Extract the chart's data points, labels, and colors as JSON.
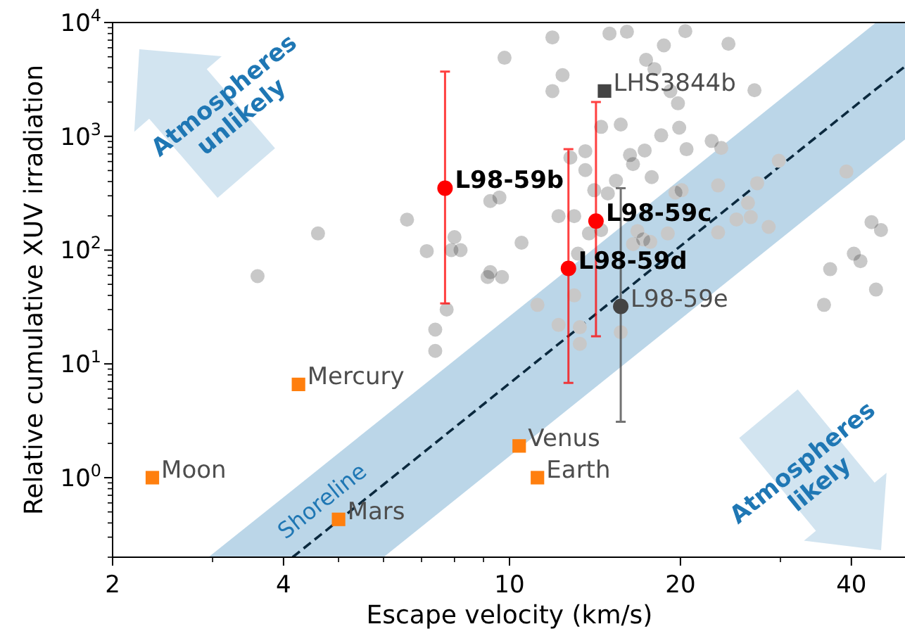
{
  "chart_data": {
    "type": "scatter",
    "xlabel": "Escape velocity (km/s)",
    "ylabel": "Relative cumulative XUV irradiation",
    "log": "xy",
    "xlim": [
      2,
      50
    ],
    "ylim": [
      0.2,
      10000
    ],
    "xticks": [
      2,
      {
        "value": 3,
        "label": null
      },
      4,
      {
        "value": 5,
        "label": null
      },
      {
        "value": 6,
        "label": null
      },
      {
        "value": 7,
        "label": null
      },
      {
        "value": 8,
        "label": null
      },
      {
        "value": 9,
        "label": null
      },
      10,
      20,
      {
        "value": 30,
        "label": null
      },
      40
    ],
    "yticks": [
      {
        "value": 0.2,
        "label": null
      },
      {
        "value": 0.3,
        "label": null
      },
      {
        "value": 0.4,
        "label": null
      },
      {
        "value": 0.5,
        "label": null
      },
      {
        "value": 0.6,
        "label": null
      },
      {
        "value": 0.7,
        "label": null
      },
      {
        "value": 0.8,
        "label": null
      },
      {
        "value": 0.9,
        "label": null
      },
      {
        "value": 1,
        "label": "10$^{0}$"
      },
      {
        "value": 2,
        "label": null
      },
      {
        "value": 3,
        "label": null
      },
      {
        "value": 4,
        "label": null
      },
      {
        "value": 5,
        "label": null
      },
      {
        "value": 6,
        "label": null
      },
      {
        "value": 7,
        "label": null
      },
      {
        "value": 8,
        "label": null
      },
      {
        "value": 9,
        "label": null
      },
      {
        "value": 10,
        "label": "10$^{1}$"
      },
      {
        "value": 20,
        "label": null
      },
      {
        "value": 30,
        "label": null
      },
      {
        "value": 40,
        "label": null
      },
      {
        "value": 50,
        "label": null
      },
      {
        "value": 60,
        "label": null
      },
      {
        "value": 70,
        "label": null
      },
      {
        "value": 80,
        "label": null
      },
      {
        "value": 90,
        "label": null
      },
      {
        "value": 100,
        "label": "10$^{2}$"
      },
      {
        "value": 200,
        "label": null
      },
      {
        "value": 300,
        "label": null
      },
      {
        "value": 400,
        "label": null
      },
      {
        "value": 500,
        "label": null
      },
      {
        "value": 600,
        "label": null
      },
      {
        "value": 700,
        "label": null
      },
      {
        "value": 800,
        "label": null
      },
      {
        "value": 900,
        "label": null
      },
      {
        "value": 1000,
        "label": "10$^{3}$"
      },
      {
        "value": 2000,
        "label": null
      },
      {
        "value": 3000,
        "label": null
      },
      {
        "value": 4000,
        "label": null
      },
      {
        "value": 5000,
        "label": null
      },
      {
        "value": 6000,
        "label": null
      },
      {
        "value": 7000,
        "label": null
      },
      {
        "value": 8000,
        "label": null
      },
      {
        "value": 9000,
        "label": null
      },
      {
        "value": 10000,
        "label": "10$^{4}$"
      }
    ],
    "annotations": [
      "Atmospheres\nunlikely",
      "Atmospheres\nlikely"
    ],
    "series": [
      {
        "type": "line",
        "name": "Shoreline",
        "color": "#1f77b4",
        "x": [
          2.95,
          4.15,
          6.0,
          44.2,
          50
        ],
        "values": [
          null,
          null,
          null,
          null,
          null
        ],
        "lower": [
          0.2,
          0.2,
          0.2,
          590,
          960
        ],
        "upper": [
          0.2,
          0.78,
          3.4,
          10000,
          10000
        ]
      },
      {
        "type": "line",
        "color": "#0b293e",
        "line_style": "dashed",
        "x": [
          4.15,
          6.0,
          44.2,
          50
        ],
        "values": [
          0.2,
          0.87,
          2600,
          4200
        ]
      },
      {
        "color": "#c8c8c8",
        "marker": "circle",
        "x": [
          9.8,
          6.6,
          4.6,
          3.6,
          7.15,
          8.0,
          7.9,
          8.2,
          9.25,
          9.6,
          9.15,
          9.25,
          9.7,
          7.75,
          7.4,
          7.4,
          11.9,
          15.0,
          16.1,
          20.4,
          18.7,
          24.3,
          12.4,
          11.9,
          17.4,
          18.0,
          19.8,
          27.0,
          14.5,
          15.7,
          19.9,
          18.5,
          22.7,
          23.6,
          20.5,
          16.3,
          17.3,
          16.5,
          13.6,
          12.8,
          13.6,
          15.4,
          17.8,
          14.1,
          14.9,
          19.6,
          20.1,
          23.3,
          29.8,
          26.3,
          27.3,
          39.2,
          12.2,
          13.0,
          13.8,
          14.5,
          16.8,
          17.2,
          16.5,
          17.7,
          19.0,
          23.3,
          25.1,
          26.6,
          28.6,
          10.5,
          13.2,
          43.4,
          45.1,
          40.4,
          41.5,
          36.7,
          44.2,
          35.8,
          11.2,
          13.0,
          12.2,
          13.3,
          13.3,
          15.7,
          19.2
        ],
        "values": [
          4900,
          185,
          140,
          59,
          98,
          130,
          100,
          100,
          270,
          290,
          58,
          64,
          58,
          30,
          20,
          13,
          7400,
          8000,
          8300,
          8400,
          6300,
          6500,
          3450,
          2500,
          4700,
          3900,
          1950,
          2540,
          1210,
          1270,
          1190,
          1020,
          910,
          790,
          770,
          685,
          750,
          570,
          740,
          650,
          505,
          407,
          438,
          336,
          315,
          320,
          336,
          370,
          610,
          260,
          387,
          490,
          199,
          199,
          140,
          150,
          147,
          124,
          113,
          118,
          140,
          143,
          186,
          195,
          160,
          116,
          93,
          176,
          150,
          93,
          80,
          68,
          45,
          33,
          33,
          40,
          22,
          21,
          15,
          19,
          2500
        ]
      },
      {
        "name": "Moon",
        "color": "#ff7f0e",
        "marker": "square",
        "x": [
          2.35
        ],
        "values": [
          1.0
        ]
      },
      {
        "name": "Mercury",
        "color": "#ff7f0e",
        "marker": "square",
        "x": [
          4.25
        ],
        "values": [
          6.6
        ]
      },
      {
        "name": "Mars",
        "color": "#ff7f0e",
        "marker": "square",
        "x": [
          5.0
        ],
        "values": [
          0.43
        ]
      },
      {
        "name": "Venus",
        "color": "#ff7f0e",
        "marker": "square",
        "x": [
          10.4
        ],
        "values": [
          1.9
        ]
      },
      {
        "name": "Earth",
        "color": "#ff7f0e",
        "marker": "square",
        "x": [
          11.2
        ],
        "values": [
          1.0
        ]
      },
      {
        "name": "LHS3844b",
        "color": "#444444",
        "marker": "square",
        "x": [
          14.7
        ],
        "values": [
          2500
        ]
      },
      {
        "name": "L98-59b",
        "color": "#ff0000",
        "marker": "circle",
        "x": [
          7.7
        ],
        "values": [
          350
        ],
        "errors": [
          [
            34,
            3700
          ]
        ]
      },
      {
        "name": "L98-59c",
        "color": "#ff0000",
        "marker": "circle",
        "x": [
          14.2
        ],
        "values": [
          180
        ],
        "errors": [
          [
            17.5,
            2000
          ]
        ]
      },
      {
        "name": "L98-59d",
        "color": "#ff0000",
        "marker": "circle",
        "x": [
          12.7
        ],
        "values": [
          69
        ],
        "errors": [
          [
            6.8,
            770
          ]
        ]
      },
      {
        "name": "L98-59e",
        "color": "#444444",
        "marker": "circle",
        "x": [
          15.7
        ],
        "values": [
          32
        ],
        "errors": [
          [
            3.1,
            350
          ]
        ]
      }
    ]
  }
}
